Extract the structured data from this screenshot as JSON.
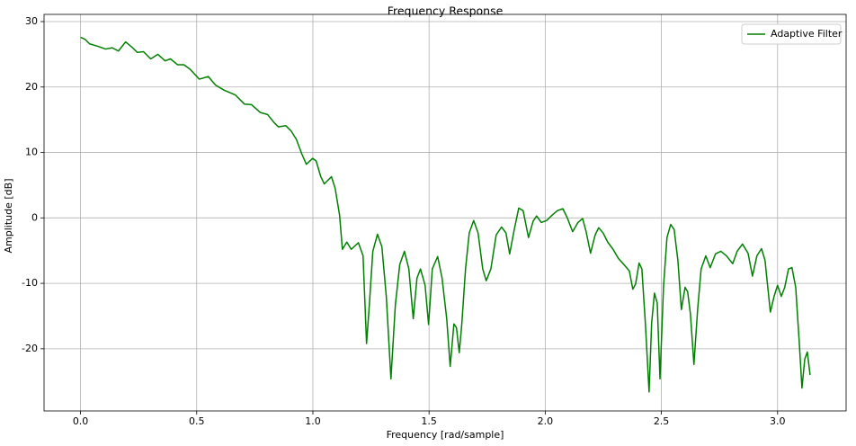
{
  "chart_data": {
    "type": "line",
    "title": "Frequency Response",
    "x_label": "Frequency [rad/sample]",
    "y_label": "Amplitude [dB]",
    "xlim": [
      -0.157,
      3.295
    ],
    "ylim": [
      -29.5,
      31.1
    ],
    "xticks": [
      {
        "value": 0,
        "label": "0.0"
      },
      0.5,
      {
        "value": 1,
        "label": "1.0"
      },
      1.5,
      {
        "value": 2,
        "label": "2.0"
      },
      2.5,
      {
        "value": 3,
        "label": "3.0"
      }
    ],
    "yticks": [
      -20,
      -10,
      0,
      10,
      20,
      30
    ],
    "grid": true,
    "legend": "upper right",
    "x": [
      0.0,
      0.019,
      0.039,
      0.077,
      0.108,
      0.136,
      0.163,
      0.194,
      0.221,
      0.244,
      0.271,
      0.302,
      0.333,
      0.364,
      0.387,
      0.418,
      0.445,
      0.472,
      0.511,
      0.55,
      0.581,
      0.619,
      0.666,
      0.705,
      0.736,
      0.774,
      0.805,
      0.832,
      0.852,
      0.883,
      0.906,
      0.929,
      0.952,
      0.972,
      0.999,
      1.014,
      1.034,
      1.049,
      1.08,
      1.096,
      1.115,
      1.127,
      1.146,
      1.165,
      1.196,
      1.216,
      1.231,
      1.243,
      1.258,
      1.278,
      1.297,
      1.316,
      1.336,
      1.355,
      1.374,
      1.394,
      1.413,
      1.432,
      1.448,
      1.463,
      1.483,
      1.498,
      1.514,
      1.537,
      1.556,
      1.576,
      1.591,
      1.607,
      1.618,
      1.63,
      1.641,
      1.657,
      1.673,
      1.692,
      1.711,
      1.731,
      1.746,
      1.766,
      1.789,
      1.812,
      1.831,
      1.847,
      1.866,
      1.886,
      1.905,
      1.928,
      1.948,
      1.963,
      1.983,
      2.006,
      2.029,
      2.052,
      2.076,
      2.095,
      2.118,
      2.141,
      2.161,
      2.176,
      2.195,
      2.215,
      2.23,
      2.249,
      2.269,
      2.292,
      2.315,
      2.338,
      2.362,
      2.377,
      2.389,
      2.404,
      2.416,
      2.431,
      2.447,
      2.458,
      2.47,
      2.482,
      2.494,
      2.509,
      2.524,
      2.54,
      2.555,
      2.571,
      2.586,
      2.602,
      2.613,
      2.625,
      2.64,
      2.656,
      2.671,
      2.691,
      2.71,
      2.733,
      2.756,
      2.78,
      2.807,
      2.826,
      2.849,
      2.873,
      2.892,
      2.911,
      2.931,
      2.946,
      2.962,
      2.969,
      2.985,
      3.0,
      3.016,
      3.031,
      3.047,
      3.062,
      3.078,
      3.093,
      3.105,
      3.117,
      3.128,
      3.14
    ],
    "series": [
      {
        "name": "Adaptive Filter",
        "color": "#008000",
        "values": [
          27.6,
          27.3,
          26.6,
          26.2,
          25.8,
          26.0,
          25.5,
          26.9,
          26.1,
          25.3,
          25.4,
          24.3,
          25.0,
          24.0,
          24.3,
          23.4,
          23.4,
          22.7,
          21.2,
          21.6,
          20.3,
          19.5,
          18.8,
          17.4,
          17.3,
          16.1,
          15.8,
          14.6,
          13.9,
          14.1,
          13.3,
          12.0,
          9.8,
          8.2,
          9.1,
          8.7,
          6.3,
          5.2,
          6.3,
          4.5,
          0.4,
          -4.8,
          -3.7,
          -4.8,
          -3.8,
          -5.8,
          -19.2,
          -13.3,
          -5.1,
          -2.5,
          -4.4,
          -12.0,
          -24.6,
          -13.3,
          -7.1,
          -5.1,
          -7.8,
          -15.4,
          -9.2,
          -7.8,
          -10.3,
          -16.3,
          -7.8,
          -5.9,
          -9.2,
          -15.4,
          -22.7,
          -16.2,
          -16.8,
          -20.6,
          -16.2,
          -7.8,
          -2.3,
          -0.4,
          -2.3,
          -7.8,
          -9.6,
          -7.8,
          -2.6,
          -1.4,
          -2.3,
          -5.5,
          -1.9,
          1.5,
          1.1,
          -3.0,
          -0.5,
          0.3,
          -0.7,
          -0.4,
          0.4,
          1.1,
          1.4,
          0.0,
          -2.1,
          -0.7,
          -0.1,
          -2.1,
          -5.4,
          -2.6,
          -1.5,
          -2.3,
          -3.7,
          -4.8,
          -6.2,
          -7.1,
          -8.1,
          -10.9,
          -10.1,
          -6.9,
          -7.8,
          -16.1,
          -26.6,
          -16.1,
          -11.5,
          -13.0,
          -24.6,
          -10.6,
          -3.0,
          -1.0,
          -1.8,
          -6.5,
          -14.0,
          -10.6,
          -11.3,
          -14.7,
          -22.4,
          -14.0,
          -7.8,
          -5.8,
          -7.6,
          -5.5,
          -5.1,
          -5.8,
          -7.0,
          -5.1,
          -4.0,
          -5.4,
          -8.9,
          -5.8,
          -4.7,
          -6.5,
          -12.0,
          -14.4,
          -12.0,
          -10.3,
          -12.0,
          -10.6,
          -7.8,
          -7.6,
          -10.6,
          -18.8,
          -26.0,
          -21.6,
          -20.5,
          -24.0
        ]
      }
    ]
  }
}
